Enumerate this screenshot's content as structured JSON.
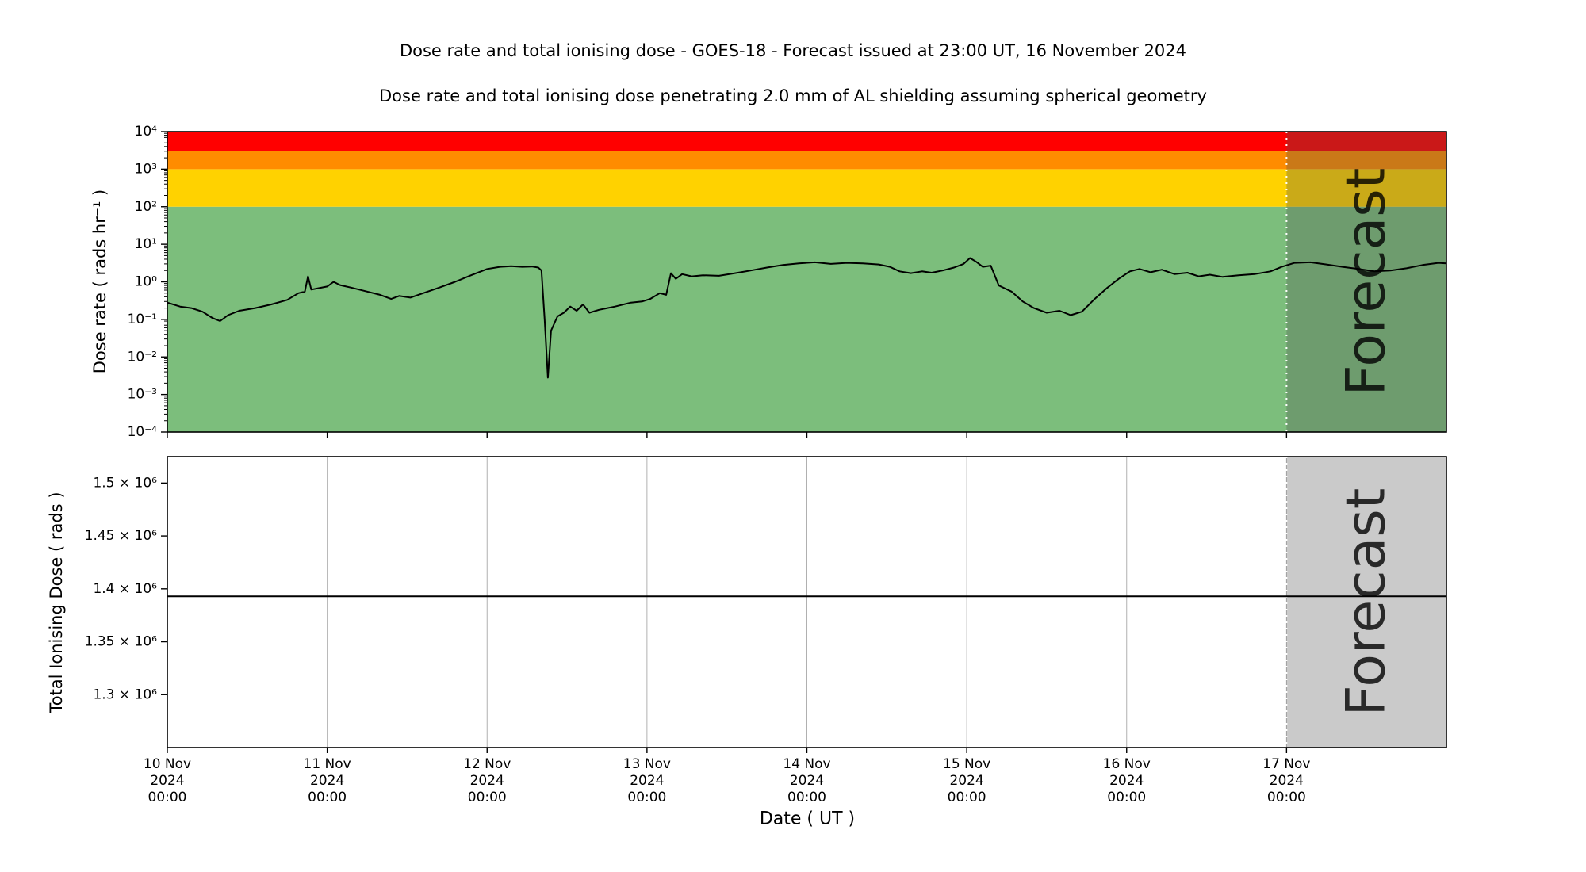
{
  "titles": {
    "main": "Dose rate and total ionising dose - GOES-18 - Forecast issued at 23:00 UT, 16 November 2024",
    "subtitle": "Dose rate and total ionising dose penetrating 2.0 mm of AL shielding assuming spherical geometry"
  },
  "x_axis": {
    "label": "Date ( UT )",
    "lim": [
      0,
      8
    ],
    "ticks": [
      {
        "t": 0,
        "lines": [
          "10 Nov",
          "2024",
          "00:00"
        ]
      },
      {
        "t": 1,
        "lines": [
          "11 Nov",
          "2024",
          "00:00"
        ]
      },
      {
        "t": 2,
        "lines": [
          "12 Nov",
          "2024",
          "00:00"
        ]
      },
      {
        "t": 3,
        "lines": [
          "13 Nov",
          "2024",
          "00:00"
        ]
      },
      {
        "t": 4,
        "lines": [
          "14 Nov",
          "2024",
          "00:00"
        ]
      },
      {
        "t": 5,
        "lines": [
          "15 Nov",
          "2024",
          "00:00"
        ]
      },
      {
        "t": 6,
        "lines": [
          "16 Nov",
          "2024",
          "00:00"
        ]
      },
      {
        "t": 7,
        "lines": [
          "17 Nov",
          "2024",
          "00:00"
        ]
      }
    ]
  },
  "forecast": {
    "label": "Forecast",
    "start": 7.0,
    "overlay_color": "#505050",
    "overlay_opacity": 0.3,
    "divider_color": "#ffffff",
    "text_color": "#6e6e6e"
  },
  "colors": {
    "line": "#000000",
    "grid": "#b0b0b0",
    "frame": "#000000",
    "band_green": "#7cbe7c",
    "band_yellow": "#ffd200",
    "band_orange": "#ff8c00",
    "band_red": "#ff0000"
  },
  "chart_data": [
    {
      "type": "line",
      "panel": "dose_rate",
      "ylabel": "Dose rate ( rads hr⁻¹ )",
      "yscale": "log",
      "ylim": [
        0.0001,
        10000
      ],
      "xlim": [
        0,
        8
      ],
      "x_epoch": "days since 10 Nov 2024 00:00 UT",
      "grid": "off",
      "legend": "none",
      "y_ticks": [
        {
          "v": 10000,
          "label": "10⁴"
        },
        {
          "v": 1000,
          "label": "10³"
        },
        {
          "v": 100,
          "label": "10²"
        },
        {
          "v": 10,
          "label": "10¹"
        },
        {
          "v": 1,
          "label": "10⁰"
        },
        {
          "v": 0.1,
          "label": "10⁻¹"
        },
        {
          "v": 0.01,
          "label": "10⁻²"
        },
        {
          "v": 0.001,
          "label": "10⁻³"
        },
        {
          "v": 0.0001,
          "label": "10⁻⁴"
        }
      ],
      "bands": [
        {
          "name": "green",
          "from": 0.0001,
          "to": 100,
          "color": "#7cbe7c"
        },
        {
          "name": "yellow",
          "from": 100,
          "to": 1000,
          "color": "#ffd200"
        },
        {
          "name": "orange",
          "from": 1000,
          "to": 3000,
          "color": "#ff8c00"
        },
        {
          "name": "red",
          "from": 3000,
          "to": 10000,
          "color": "#ff0000"
        }
      ],
      "series": [
        {
          "name": "dose_rate",
          "x": [
            0,
            0.08,
            0.15,
            0.22,
            0.28,
            0.33,
            0.38,
            0.45,
            0.55,
            0.65,
            0.75,
            0.82,
            0.86,
            0.88,
            0.9,
            0.95,
            1.0,
            1.04,
            1.08,
            1.15,
            1.25,
            1.33,
            1.4,
            1.45,
            1.52,
            1.6,
            1.7,
            1.8,
            1.9,
            2.0,
            2.08,
            2.15,
            2.22,
            2.28,
            2.32,
            2.34,
            2.36,
            2.38,
            2.4,
            2.44,
            2.48,
            2.52,
            2.56,
            2.6,
            2.64,
            2.7,
            2.8,
            2.9,
            2.97,
            3.02,
            3.08,
            3.12,
            3.15,
            3.18,
            3.22,
            3.28,
            3.35,
            3.45,
            3.55,
            3.65,
            3.75,
            3.85,
            3.95,
            4.05,
            4.15,
            4.25,
            4.35,
            4.45,
            4.52,
            4.58,
            4.65,
            4.72,
            4.78,
            4.85,
            4.92,
            4.98,
            5.02,
            5.06,
            5.1,
            5.15,
            5.2,
            5.28,
            5.35,
            5.42,
            5.5,
            5.58,
            5.65,
            5.72,
            5.8,
            5.88,
            5.95,
            6.02,
            6.08,
            6.15,
            6.22,
            6.3,
            6.38,
            6.45,
            6.52,
            6.6,
            6.7,
            6.8,
            6.9,
            6.97,
            7.05,
            7.15,
            7.25,
            7.35,
            7.45,
            7.55,
            7.65,
            7.75,
            7.85,
            7.95,
            8.0
          ],
          "y": [
            0.28,
            0.22,
            0.2,
            0.16,
            0.11,
            0.09,
            0.13,
            0.17,
            0.2,
            0.25,
            0.33,
            0.5,
            0.55,
            1.4,
            0.62,
            0.68,
            0.75,
            1.0,
            0.82,
            0.7,
            0.55,
            0.45,
            0.35,
            0.42,
            0.38,
            0.5,
            0.7,
            1.0,
            1.5,
            2.2,
            2.5,
            2.6,
            2.5,
            2.55,
            2.4,
            2.0,
            0.1,
            0.0028,
            0.05,
            0.12,
            0.15,
            0.22,
            0.17,
            0.25,
            0.15,
            0.18,
            0.22,
            0.28,
            0.3,
            0.35,
            0.5,
            0.45,
            1.7,
            1.2,
            1.6,
            1.4,
            1.5,
            1.45,
            1.7,
            2.0,
            2.4,
            2.8,
            3.1,
            3.3,
            3.0,
            3.2,
            3.1,
            2.9,
            2.5,
            1.9,
            1.7,
            1.9,
            1.75,
            2.0,
            2.4,
            3.0,
            4.3,
            3.4,
            2.5,
            2.7,
            0.8,
            0.55,
            0.3,
            0.2,
            0.15,
            0.17,
            0.13,
            0.16,
            0.35,
            0.7,
            1.2,
            1.9,
            2.2,
            1.8,
            2.1,
            1.6,
            1.75,
            1.4,
            1.55,
            1.35,
            1.5,
            1.6,
            1.9,
            2.5,
            3.2,
            3.3,
            2.9,
            2.5,
            2.2,
            1.9,
            2.0,
            2.3,
            2.8,
            3.2,
            3.1
          ]
        }
      ]
    },
    {
      "type": "line",
      "panel": "total_dose",
      "ylabel": "Total Ionising Dose ( rads )",
      "yscale": "linear",
      "ylim": [
        1250000,
        1525000
      ],
      "xlim": [
        0,
        8
      ],
      "grid": "vertical",
      "legend": "none",
      "y_ticks": [
        {
          "v": 1300000,
          "label": "1.3 × 10⁶"
        },
        {
          "v": 1350000,
          "label": "1.35 × 10⁶"
        },
        {
          "v": 1400000,
          "label": "1.4 × 10⁶"
        },
        {
          "v": 1450000,
          "label": "1.45 × 10⁶"
        },
        {
          "v": 1500000,
          "label": "1.5 × 10⁶"
        }
      ],
      "series": [
        {
          "name": "total_ionising_dose",
          "x": [
            0,
            8
          ],
          "y": [
            1393000,
            1393000
          ]
        }
      ]
    }
  ]
}
